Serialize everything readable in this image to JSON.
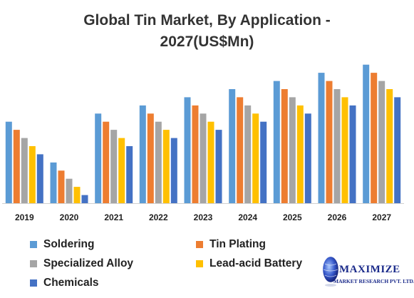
{
  "title_line1": "Global Tin Market, By Application -",
  "title_line2": "2027(US$Mn)",
  "chart_data": {
    "type": "bar",
    "title": "Global Tin Market, By Application - 2027(US$Mn)",
    "categories": [
      "2019",
      "2020",
      "2021",
      "2022",
      "2023",
      "2024",
      "2025",
      "2026",
      "2027"
    ],
    "series": [
      {
        "name": "Soldering",
        "color": "#5b9bd5",
        "values": [
          10,
          5,
          11,
          12,
          13,
          14,
          15,
          16,
          17
        ]
      },
      {
        "name": "Tin Plating",
        "color": "#ed7d31",
        "values": [
          9,
          4,
          10,
          11,
          12,
          13,
          14,
          15,
          16
        ]
      },
      {
        "name": "Specialized Alloy",
        "color": "#a5a5a5",
        "values": [
          8,
          3,
          9,
          10,
          11,
          12,
          13,
          14,
          15
        ]
      },
      {
        "name": "Lead-acid Battery",
        "color": "#ffc000",
        "values": [
          7,
          2,
          8,
          9,
          10,
          11,
          12,
          13,
          14
        ]
      },
      {
        "name": "Chemicals",
        "color": "#4472c4",
        "values": [
          6,
          1,
          7,
          8,
          9,
          10,
          11,
          12,
          13
        ]
      }
    ],
    "ylim": [
      0,
      17.5
    ],
    "xlabel": "",
    "ylabel": "",
    "grid": false,
    "legend_position": "bottom-left"
  },
  "logo": {
    "name": "MAXIMIZE",
    "subtitle": "MARKET RESEARCH PVT. LTD."
  }
}
